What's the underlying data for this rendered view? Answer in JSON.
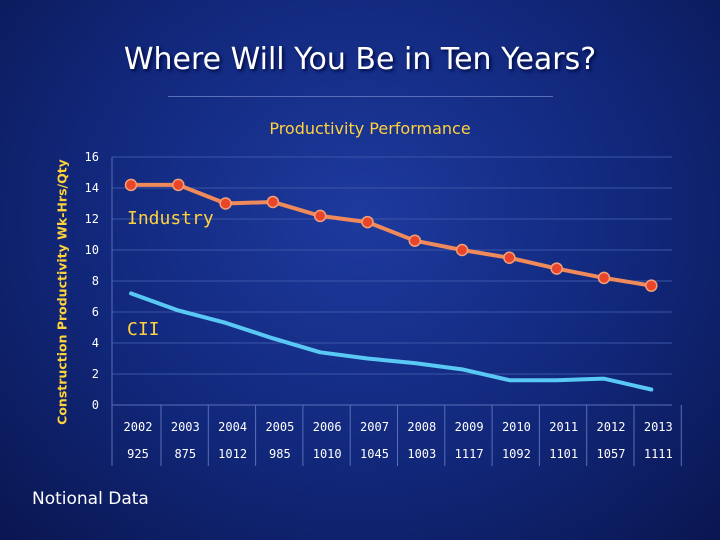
{
  "slide": {
    "title": "Where Will You Be in Ten Years?",
    "footnote": "Notional Data"
  },
  "colors": {
    "background": "#11277a",
    "title": "#ffffff",
    "accent": "#ffd23c",
    "industry_line": "#f08a5a",
    "industry_marker": "#e8452a",
    "cii_line": "#5ac8f5"
  },
  "chart_data": {
    "type": "line",
    "title": "Productivity Performance",
    "ylabel": "Construction Productivity Wk-Hrs/Qty",
    "xlabel": "",
    "ylim": [
      0,
      16
    ],
    "yticks": [
      0,
      2,
      4,
      6,
      8,
      10,
      12,
      14,
      16
    ],
    "grid": "horizontal",
    "categories": [
      "2002",
      "2003",
      "2004",
      "2005",
      "2006",
      "2007",
      "2008",
      "2009",
      "2010",
      "2011",
      "2012",
      "2013"
    ],
    "secondary_row": [
      "925",
      "875",
      "1012",
      "985",
      "1010",
      "1045",
      "1003",
      "1117",
      "1092",
      "1101",
      "1057",
      "1111"
    ],
    "series": [
      {
        "name": "Industry",
        "values": [
          14.2,
          14.2,
          13.0,
          13.1,
          12.2,
          11.8,
          10.6,
          10.0,
          9.5,
          8.8,
          8.2,
          7.7
        ],
        "color": "#f08a5a",
        "markers": true
      },
      {
        "name": "CII",
        "values": [
          7.2,
          6.1,
          5.3,
          4.3,
          3.4,
          3.0,
          2.7,
          2.3,
          1.6,
          1.6,
          1.7,
          1.0
        ],
        "color": "#5ac8f5",
        "markers": false
      }
    ]
  }
}
